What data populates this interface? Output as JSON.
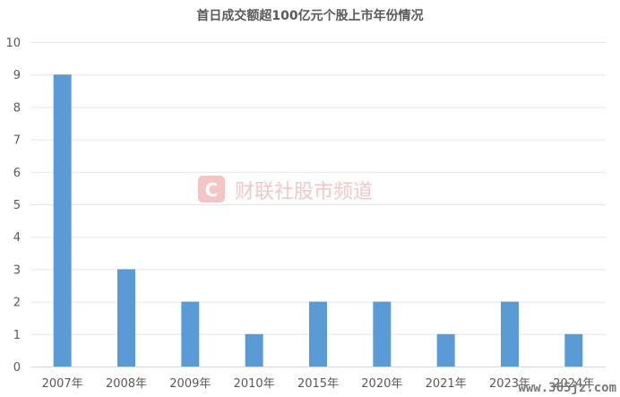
{
  "chart_data": {
    "type": "bar",
    "title": "首日成交额超100亿元个股上市年份情况",
    "categories": [
      "2007年",
      "2008年",
      "2009年",
      "2010年",
      "2015年",
      "2020年",
      "2021年",
      "2023年",
      "2024年"
    ],
    "values": [
      9,
      3,
      2,
      1,
      2,
      2,
      1,
      2,
      1
    ],
    "ylim": [
      0,
      10
    ],
    "yticks": [
      "0",
      "1",
      "2",
      "3",
      "4",
      "5",
      "6",
      "7",
      "8",
      "9",
      "10"
    ],
    "grid": true,
    "legend": "none",
    "bar_color": "#5b9bd5"
  },
  "watermark": {
    "text": "财联社股市频道"
  },
  "corner_watermark": {
    "text": "www.365jz.com"
  }
}
